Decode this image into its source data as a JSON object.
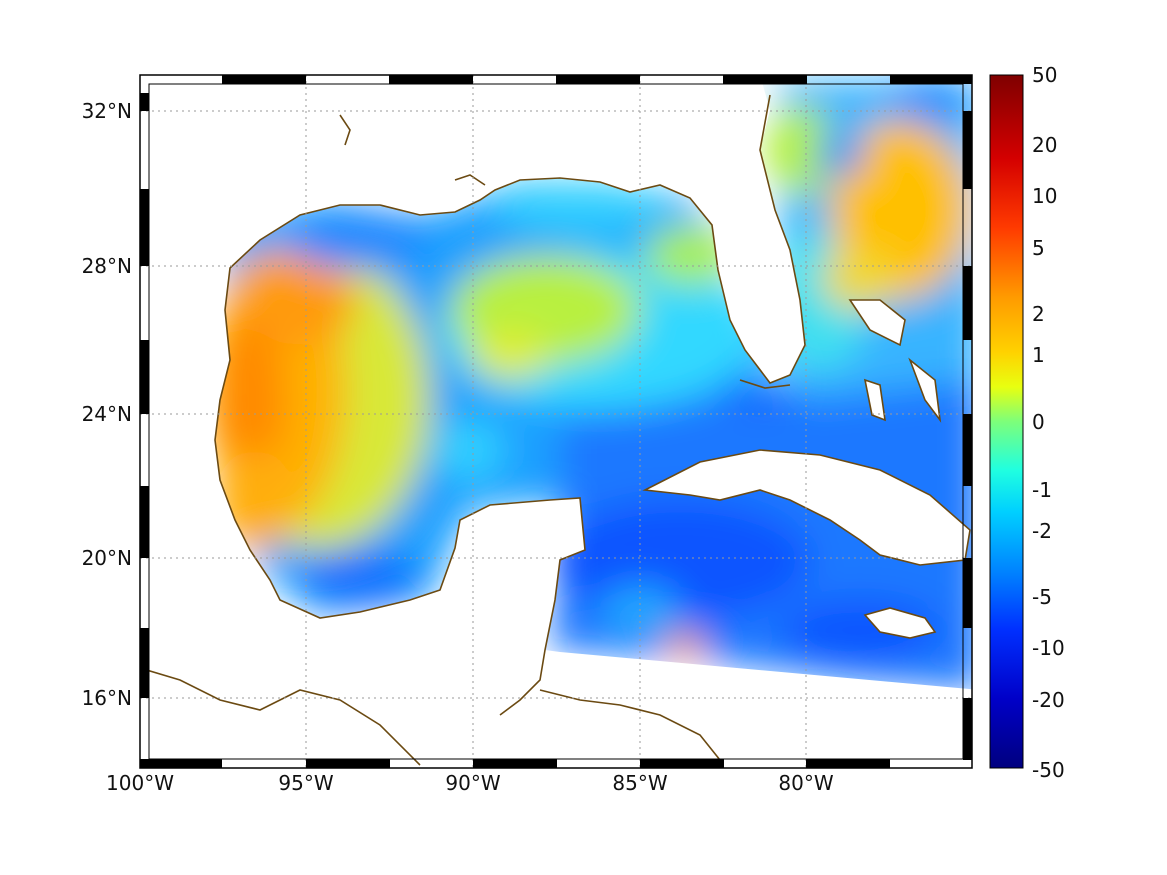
{
  "map": {
    "x_axis": {
      "labels": [
        "100°W",
        "95°W",
        "90°W",
        "85°W",
        "80°W"
      ],
      "range_deg_lon": [
        -100,
        -75
      ]
    },
    "y_axis": {
      "labels": [
        "32°N",
        "28°N",
        "24°N",
        "20°N",
        "16°N"
      ],
      "range_deg_lat": [
        14.3,
        32.9
      ]
    },
    "grid": "dotted",
    "frame": "black-white checkered",
    "coastline_color": "#6b4a12",
    "land_color": "#ffffff"
  },
  "colorbar": {
    "labels": [
      "50",
      "20",
      "10",
      "5",
      "2",
      "1",
      "0",
      "-1",
      "-2",
      "-5",
      "-10",
      "-20",
      "-50"
    ],
    "colormap": "jet",
    "scale": "symmetric nonlinear",
    "range": [
      -50,
      50
    ]
  }
}
